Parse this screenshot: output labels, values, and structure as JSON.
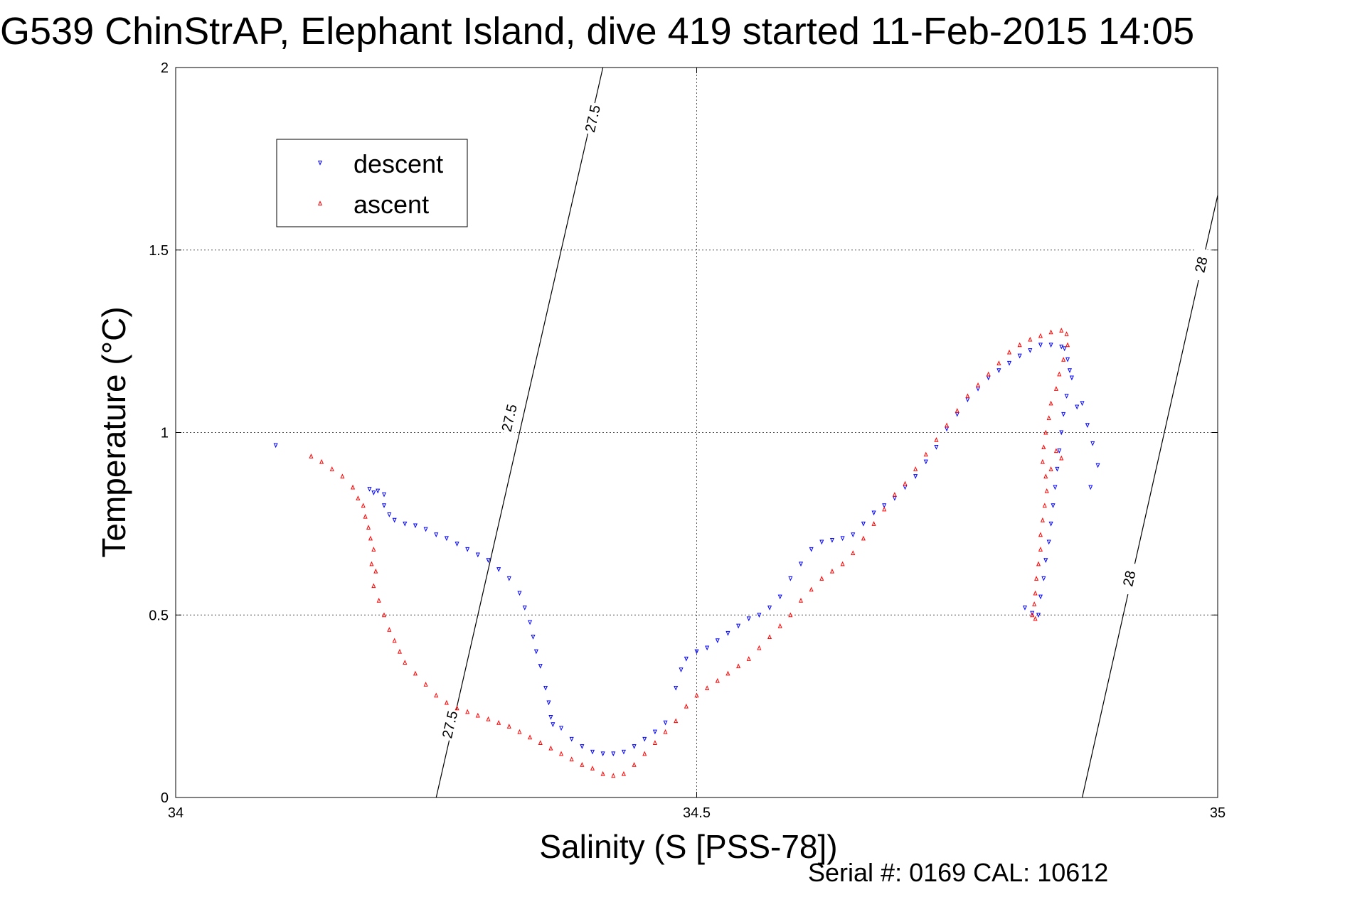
{
  "chart_data": {
    "type": "scatter",
    "title": "G539 ChinStrAP, Elephant Island, dive 419 started 11-Feb-2015 14:05",
    "xlabel": "Salinity (S [PSS-78])",
    "ylabel": "Temperature (°C)",
    "footer": "Serial #: 0169 CAL: 10612",
    "xlim": [
      34,
      35
    ],
    "ylim": [
      0,
      2
    ],
    "x_ticks": [
      "34",
      "34.5",
      "35"
    ],
    "y_ticks": [
      "0",
      "0.5",
      "1",
      "1.5",
      "2"
    ],
    "grid": true,
    "legend_position": "top-left",
    "series": [
      {
        "name": "descent",
        "color": "#0000ff",
        "marker": "triangle-down",
        "points": [
          [
            34.096,
            0.965
          ],
          [
            34.186,
            0.845
          ],
          [
            34.19,
            0.835
          ],
          [
            34.194,
            0.84
          ],
          [
            34.2,
            0.83
          ],
          [
            34.2,
            0.8
          ],
          [
            34.205,
            0.775
          ],
          [
            34.21,
            0.76
          ],
          [
            34.22,
            0.75
          ],
          [
            34.23,
            0.745
          ],
          [
            34.24,
            0.735
          ],
          [
            34.25,
            0.72
          ],
          [
            34.26,
            0.71
          ],
          [
            34.27,
            0.695
          ],
          [
            34.28,
            0.68
          ],
          [
            34.29,
            0.665
          ],
          [
            34.3,
            0.65
          ],
          [
            34.31,
            0.625
          ],
          [
            34.32,
            0.6
          ],
          [
            34.33,
            0.56
          ],
          [
            34.335,
            0.52
          ],
          [
            34.34,
            0.48
          ],
          [
            34.343,
            0.44
          ],
          [
            34.346,
            0.4
          ],
          [
            34.35,
            0.36
          ],
          [
            34.355,
            0.3
          ],
          [
            34.358,
            0.26
          ],
          [
            34.36,
            0.22
          ],
          [
            34.362,
            0.2
          ],
          [
            34.37,
            0.19
          ],
          [
            34.38,
            0.16
          ],
          [
            34.39,
            0.14
          ],
          [
            34.4,
            0.125
          ],
          [
            34.41,
            0.12
          ],
          [
            34.42,
            0.12
          ],
          [
            34.43,
            0.125
          ],
          [
            34.44,
            0.14
          ],
          [
            34.45,
            0.16
          ],
          [
            34.46,
            0.18
          ],
          [
            34.47,
            0.205
          ],
          [
            34.48,
            0.3
          ],
          [
            34.485,
            0.35
          ],
          [
            34.49,
            0.38
          ],
          [
            34.5,
            0.4
          ],
          [
            34.51,
            0.41
          ],
          [
            34.52,
            0.43
          ],
          [
            34.53,
            0.45
          ],
          [
            34.54,
            0.47
          ],
          [
            34.55,
            0.49
          ],
          [
            34.56,
            0.5
          ],
          [
            34.57,
            0.52
          ],
          [
            34.58,
            0.55
          ],
          [
            34.59,
            0.6
          ],
          [
            34.6,
            0.64
          ],
          [
            34.61,
            0.68
          ],
          [
            34.62,
            0.7
          ],
          [
            34.63,
            0.705
          ],
          [
            34.64,
            0.71
          ],
          [
            34.65,
            0.72
          ],
          [
            34.66,
            0.75
          ],
          [
            34.67,
            0.78
          ],
          [
            34.68,
            0.8
          ],
          [
            34.69,
            0.82
          ],
          [
            34.7,
            0.85
          ],
          [
            34.71,
            0.88
          ],
          [
            34.72,
            0.92
          ],
          [
            34.73,
            0.96
          ],
          [
            34.74,
            1.01
          ],
          [
            34.75,
            1.05
          ],
          [
            34.76,
            1.09
          ],
          [
            34.77,
            1.12
          ],
          [
            34.78,
            1.15
          ],
          [
            34.79,
            1.17
          ],
          [
            34.8,
            1.19
          ],
          [
            34.81,
            1.21
          ],
          [
            34.82,
            1.225
          ],
          [
            34.83,
            1.24
          ],
          [
            34.84,
            1.24
          ],
          [
            34.85,
            1.235
          ],
          [
            34.853,
            1.23
          ],
          [
            34.856,
            1.2
          ],
          [
            34.858,
            1.17
          ],
          [
            34.86,
            1.15
          ],
          [
            34.855,
            1.1
          ],
          [
            34.852,
            1.05
          ],
          [
            34.85,
            1.0
          ],
          [
            34.848,
            0.95
          ],
          [
            34.846,
            0.9
          ],
          [
            34.844,
            0.85
          ],
          [
            34.842,
            0.8
          ],
          [
            34.84,
            0.75
          ],
          [
            34.838,
            0.7
          ],
          [
            34.835,
            0.65
          ],
          [
            34.833,
            0.6
          ],
          [
            34.83,
            0.55
          ],
          [
            34.828,
            0.5
          ],
          [
            34.822,
            0.505
          ],
          [
            34.815,
            0.52
          ],
          [
            34.865,
            1.07
          ],
          [
            34.87,
            1.08
          ],
          [
            34.875,
            1.02
          ],
          [
            34.88,
            0.97
          ],
          [
            34.885,
            0.91
          ],
          [
            34.878,
            0.85
          ]
        ]
      },
      {
        "name": "ascent",
        "color": "#ff0000",
        "marker": "triangle-up",
        "points": [
          [
            34.13,
            0.935
          ],
          [
            34.14,
            0.92
          ],
          [
            34.15,
            0.9
          ],
          [
            34.16,
            0.88
          ],
          [
            34.17,
            0.85
          ],
          [
            34.175,
            0.82
          ],
          [
            34.18,
            0.8
          ],
          [
            34.182,
            0.77
          ],
          [
            34.185,
            0.74
          ],
          [
            34.187,
            0.71
          ],
          [
            34.19,
            0.68
          ],
          [
            34.188,
            0.64
          ],
          [
            34.192,
            0.62
          ],
          [
            34.19,
            0.58
          ],
          [
            34.195,
            0.54
          ],
          [
            34.2,
            0.5
          ],
          [
            34.205,
            0.46
          ],
          [
            34.21,
            0.43
          ],
          [
            34.215,
            0.4
          ],
          [
            34.22,
            0.37
          ],
          [
            34.23,
            0.34
          ],
          [
            34.24,
            0.31
          ],
          [
            34.25,
            0.28
          ],
          [
            34.26,
            0.26
          ],
          [
            34.27,
            0.245
          ],
          [
            34.28,
            0.235
          ],
          [
            34.29,
            0.225
          ],
          [
            34.3,
            0.215
          ],
          [
            34.31,
            0.205
          ],
          [
            34.32,
            0.195
          ],
          [
            34.33,
            0.18
          ],
          [
            34.34,
            0.165
          ],
          [
            34.35,
            0.15
          ],
          [
            34.36,
            0.135
          ],
          [
            34.37,
            0.12
          ],
          [
            34.38,
            0.105
          ],
          [
            34.39,
            0.09
          ],
          [
            34.4,
            0.08
          ],
          [
            34.41,
            0.065
          ],
          [
            34.42,
            0.06
          ],
          [
            34.43,
            0.065
          ],
          [
            34.44,
            0.09
          ],
          [
            34.45,
            0.12
          ],
          [
            34.46,
            0.15
          ],
          [
            34.47,
            0.18
          ],
          [
            34.48,
            0.21
          ],
          [
            34.49,
            0.25
          ],
          [
            34.5,
            0.28
          ],
          [
            34.51,
            0.3
          ],
          [
            34.52,
            0.32
          ],
          [
            34.53,
            0.34
          ],
          [
            34.54,
            0.36
          ],
          [
            34.55,
            0.38
          ],
          [
            34.56,
            0.41
          ],
          [
            34.57,
            0.44
          ],
          [
            34.58,
            0.47
          ],
          [
            34.59,
            0.5
          ],
          [
            34.6,
            0.54
          ],
          [
            34.61,
            0.57
          ],
          [
            34.62,
            0.6
          ],
          [
            34.63,
            0.62
          ],
          [
            34.64,
            0.64
          ],
          [
            34.65,
            0.67
          ],
          [
            34.66,
            0.71
          ],
          [
            34.67,
            0.75
          ],
          [
            34.68,
            0.79
          ],
          [
            34.69,
            0.83
          ],
          [
            34.7,
            0.86
          ],
          [
            34.71,
            0.9
          ],
          [
            34.72,
            0.94
          ],
          [
            34.73,
            0.98
          ],
          [
            34.74,
            1.02
          ],
          [
            34.75,
            1.06
          ],
          [
            34.76,
            1.1
          ],
          [
            34.77,
            1.13
          ],
          [
            34.78,
            1.16
          ],
          [
            34.79,
            1.19
          ],
          [
            34.8,
            1.22
          ],
          [
            34.81,
            1.24
          ],
          [
            34.82,
            1.255
          ],
          [
            34.83,
            1.265
          ],
          [
            34.84,
            1.275
          ],
          [
            34.85,
            1.28
          ],
          [
            34.855,
            1.27
          ],
          [
            34.856,
            1.24
          ],
          [
            34.852,
            1.2
          ],
          [
            34.848,
            1.16
          ],
          [
            34.845,
            1.12
          ],
          [
            34.84,
            1.08
          ],
          [
            34.838,
            1.04
          ],
          [
            34.835,
            1.0
          ],
          [
            34.833,
            0.96
          ],
          [
            34.832,
            0.92
          ],
          [
            34.835,
            0.88
          ],
          [
            34.836,
            0.84
          ],
          [
            34.834,
            0.8
          ],
          [
            34.832,
            0.76
          ],
          [
            34.83,
            0.72
          ],
          [
            34.83,
            0.68
          ],
          [
            34.828,
            0.64
          ],
          [
            34.826,
            0.6
          ],
          [
            34.825,
            0.56
          ],
          [
            34.824,
            0.53
          ],
          [
            34.822,
            0.5
          ],
          [
            34.825,
            0.49
          ],
          [
            34.845,
            0.95
          ],
          [
            34.85,
            0.93
          ],
          [
            34.84,
            0.9
          ]
        ]
      }
    ],
    "contours": [
      {
        "label": "27.5",
        "points": [
          [
            34.25,
            0.0
          ],
          [
            34.41,
            2.0
          ]
        ],
        "label_positions": [
          [
            34.263,
            0.2
          ],
          [
            34.32,
            1.04
          ],
          [
            34.4,
            1.86
          ]
        ]
      },
      {
        "label": "28",
        "points": [
          [
            34.87,
            0.0
          ],
          [
            35.0,
            1.65
          ]
        ],
        "label_positions": [
          [
            34.915,
            0.6
          ],
          [
            34.984,
            1.46
          ]
        ]
      }
    ]
  }
}
